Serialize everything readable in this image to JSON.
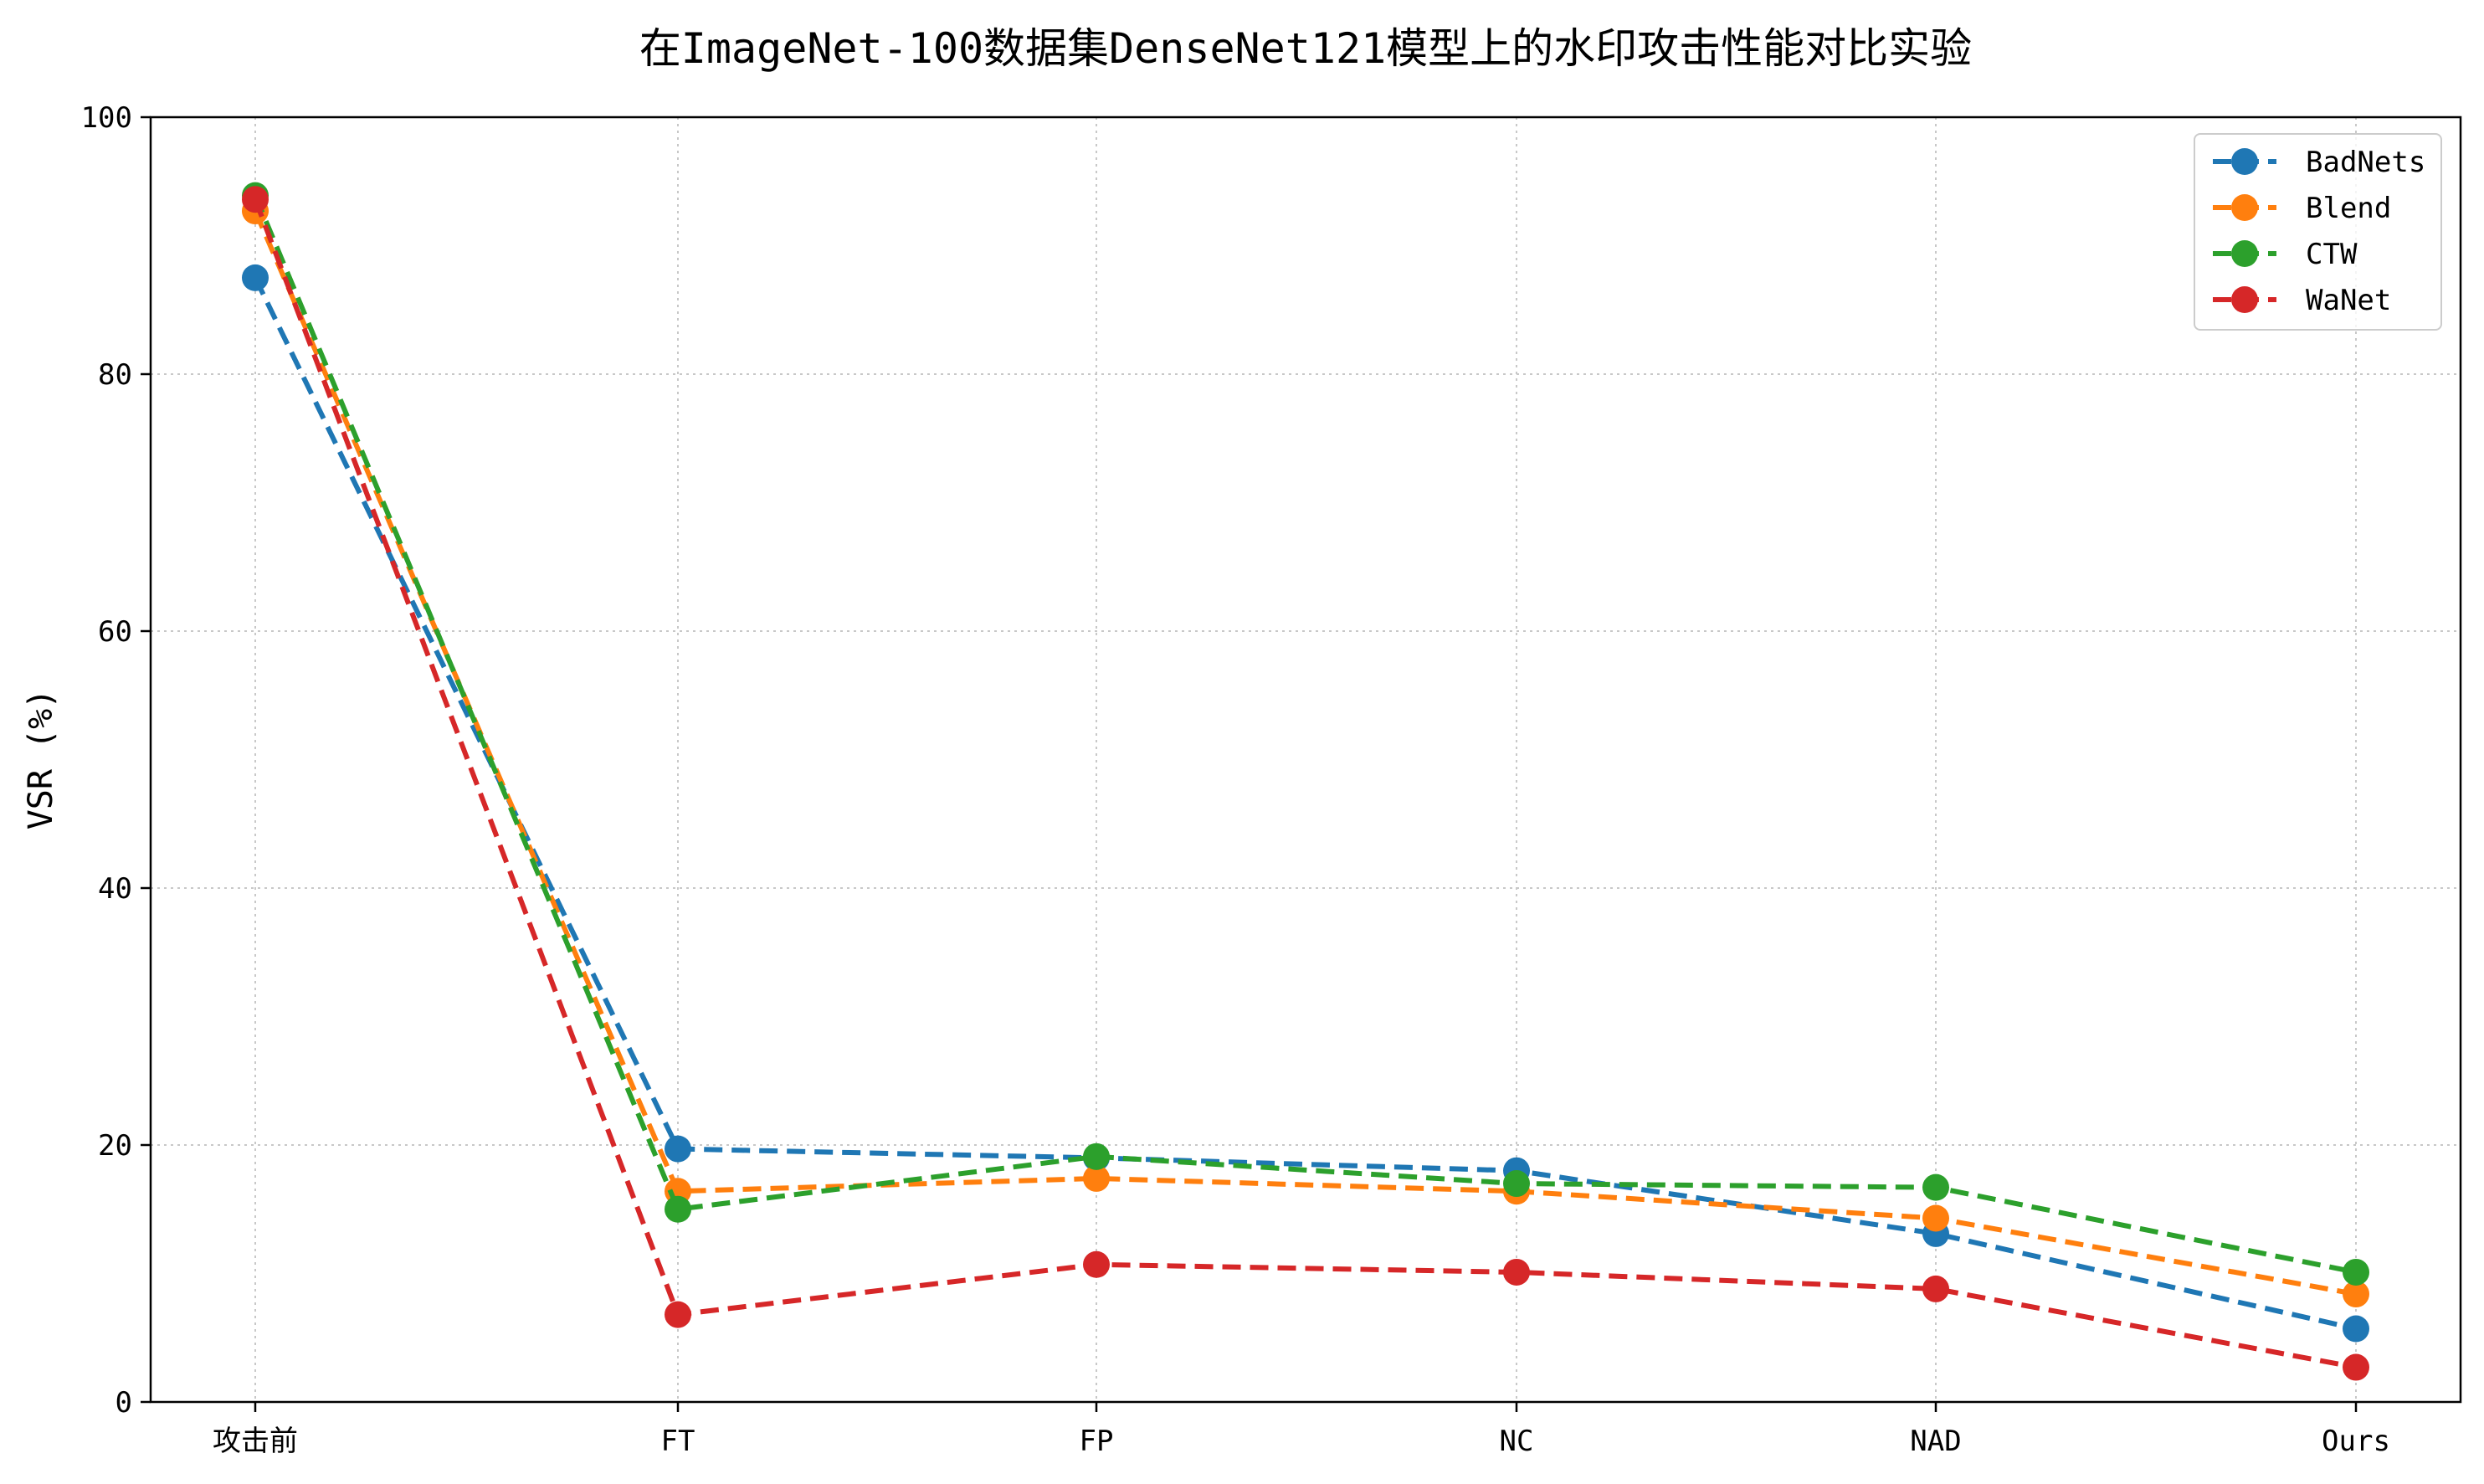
{
  "chart_data": {
    "type": "line",
    "title": "在ImageNet-100数据集DenseNet121模型上的水印攻击性能对比实验",
    "xlabel": "",
    "ylabel": "VSR (%)",
    "categories": [
      "攻击前",
      "FT",
      "FP",
      "NC",
      "NAD",
      "Ours"
    ],
    "ylim": [
      0,
      100
    ],
    "yticks": [
      0,
      20,
      40,
      60,
      80,
      100
    ],
    "grid": true,
    "grid_style": "dotted",
    "line_style": "dashed",
    "marker": "circle",
    "legend_position": "top-right",
    "series": [
      {
        "name": "BadNets",
        "color": "#1f77b4",
        "values": [
          87.5,
          19.7,
          19.0,
          18.0,
          13.1,
          5.7
        ]
      },
      {
        "name": "Blend",
        "color": "#ff7f0e",
        "values": [
          92.7,
          16.4,
          17.4,
          16.4,
          14.3,
          8.4
        ]
      },
      {
        "name": "CTW",
        "color": "#2ca02c",
        "values": [
          93.9,
          15.0,
          19.1,
          17.0,
          16.7,
          10.1
        ]
      },
      {
        "name": "WaNet",
        "color": "#d62728",
        "values": [
          93.6,
          6.8,
          10.7,
          10.1,
          8.8,
          2.7
        ]
      }
    ]
  }
}
